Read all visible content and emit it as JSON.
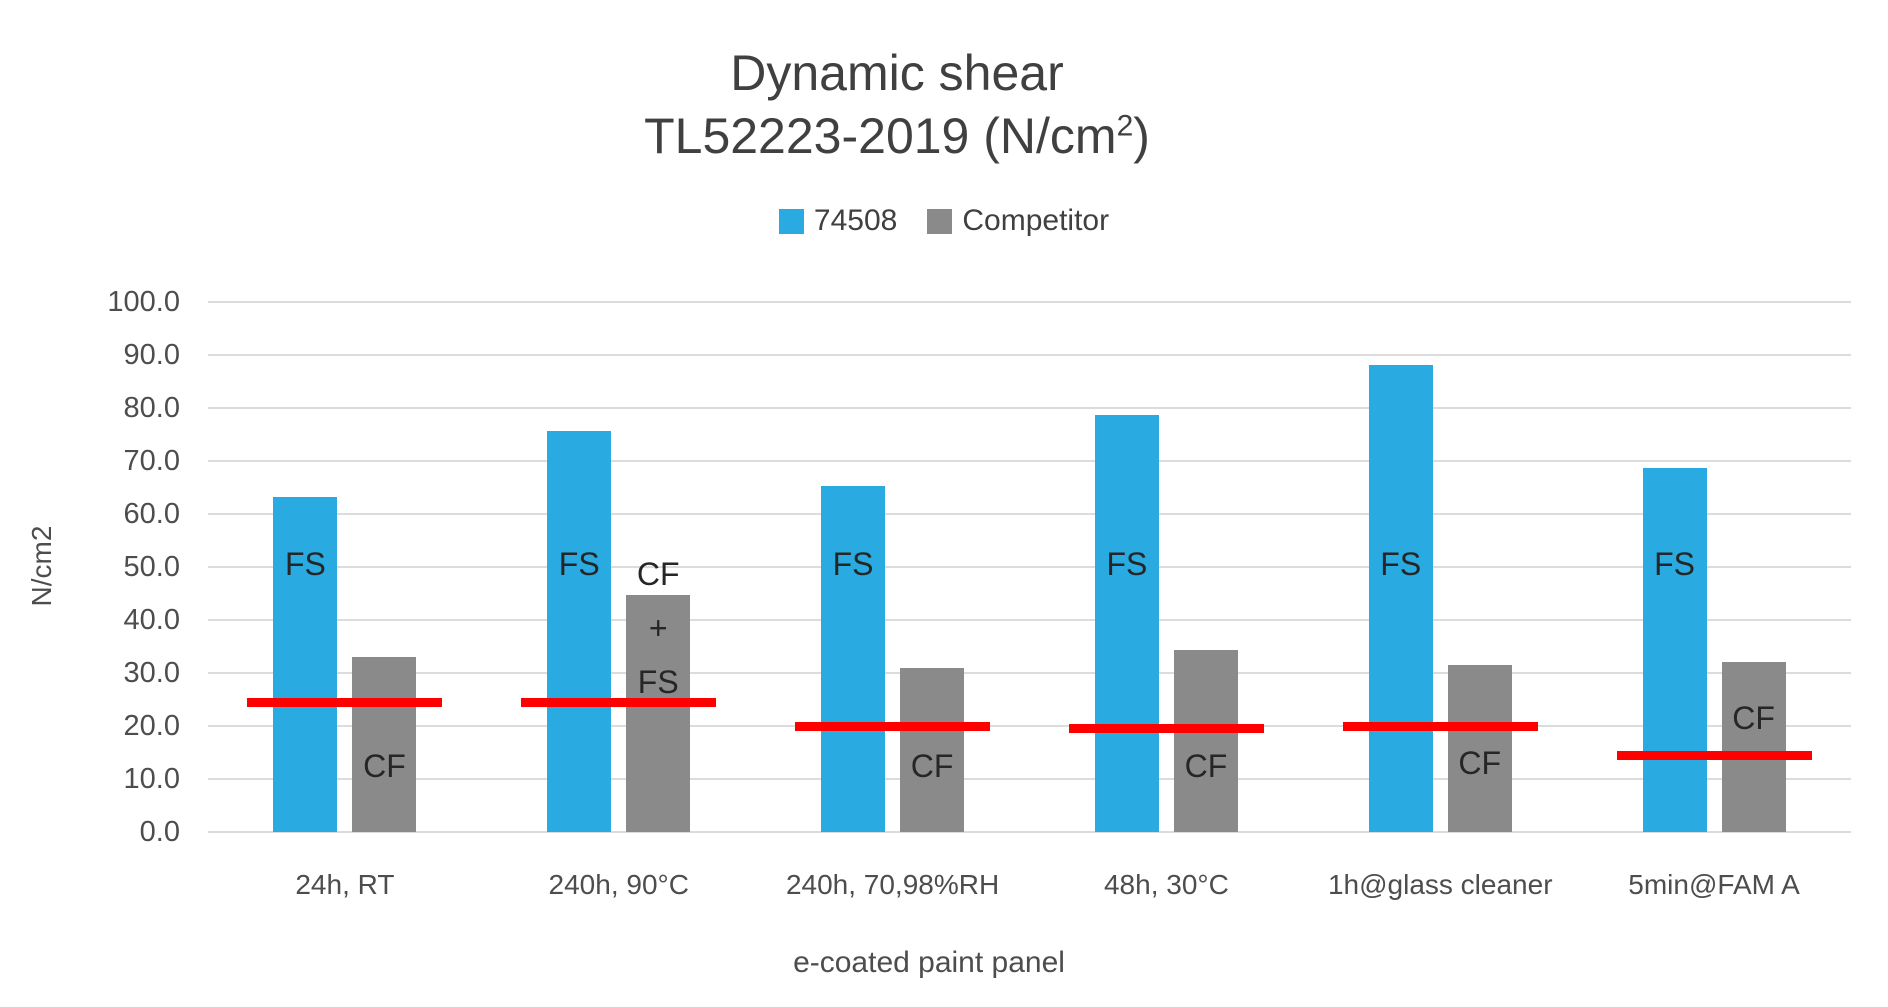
{
  "title": {
    "line1": "Dynamic shear",
    "line2_pre": "TL52223-2019 (N/cm",
    "line2_sup": "2",
    "line2_post": ")"
  },
  "chart_data": {
    "type": "bar",
    "title": "Dynamic shear TL52223-2019 (N/cm2)",
    "xlabel": "e-coated paint panel",
    "ylabel": "N/cm2",
    "ylim": [
      0,
      100
    ],
    "ytick_step": 10,
    "yticks": [
      "100.0",
      "90.0",
      "80.0",
      "70.0",
      "60.0",
      "50.0",
      "40.0",
      "30.0",
      "20.0",
      "10.0",
      "0.0"
    ],
    "grid": true,
    "legend_position": "top-center",
    "categories": [
      "24h, RT",
      "240h, 90°C",
      "240h, 70,98%RH",
      "48h, 30°C",
      "1h@glass cleaner",
      "5min@FAM A"
    ],
    "series": [
      {
        "name": "74508",
        "color": "#29ABE2",
        "values": [
          63.3,
          75.7,
          65.3,
          78.6,
          88.2,
          68.6
        ]
      },
      {
        "name": "Competitor",
        "color": "#8A8A8A",
        "values": [
          33.0,
          44.8,
          31.0,
          34.3,
          31.5,
          32.0
        ]
      }
    ],
    "threshold_lines": {
      "color": "#FF0000",
      "description": "red requirement line per group",
      "values": [
        24.5,
        24.5,
        20.0,
        19.5,
        20.0,
        14.5
      ]
    },
    "bar_annotations": [
      {
        "group": 0,
        "series": 0,
        "lines": [
          "FS"
        ],
        "center_value": 50.5
      },
      {
        "group": 0,
        "series": 1,
        "lines": [
          "CF"
        ],
        "center_value": 12.5
      },
      {
        "group": 1,
        "series": 0,
        "lines": [
          "FS"
        ],
        "center_value": 50.5
      },
      {
        "group": 1,
        "series": 1,
        "lines": [
          "CF",
          "+",
          "FS"
        ],
        "center_value": 38.5
      },
      {
        "group": 2,
        "series": 0,
        "lines": [
          "FS"
        ],
        "center_value": 50.5
      },
      {
        "group": 2,
        "series": 1,
        "lines": [
          "CF"
        ],
        "center_value": 12.5
      },
      {
        "group": 3,
        "series": 0,
        "lines": [
          "FS"
        ],
        "center_value": 50.5
      },
      {
        "group": 3,
        "series": 1,
        "lines": [
          "CF"
        ],
        "center_value": 12.5
      },
      {
        "group": 4,
        "series": 0,
        "lines": [
          "FS"
        ],
        "center_value": 50.5
      },
      {
        "group": 4,
        "series": 1,
        "lines": [
          "CF"
        ],
        "center_value": 13.0
      },
      {
        "group": 5,
        "series": 0,
        "lines": [
          "FS"
        ],
        "center_value": 50.5
      },
      {
        "group": 5,
        "series": 1,
        "lines": [
          "CF"
        ],
        "center_value": 21.5
      }
    ]
  },
  "colors": {
    "grid": "#DCDCDC",
    "axis_text": "#4d4d4d",
    "title_text": "#404040",
    "bar_label_text": "#262626",
    "background": "#FFFFFF"
  }
}
